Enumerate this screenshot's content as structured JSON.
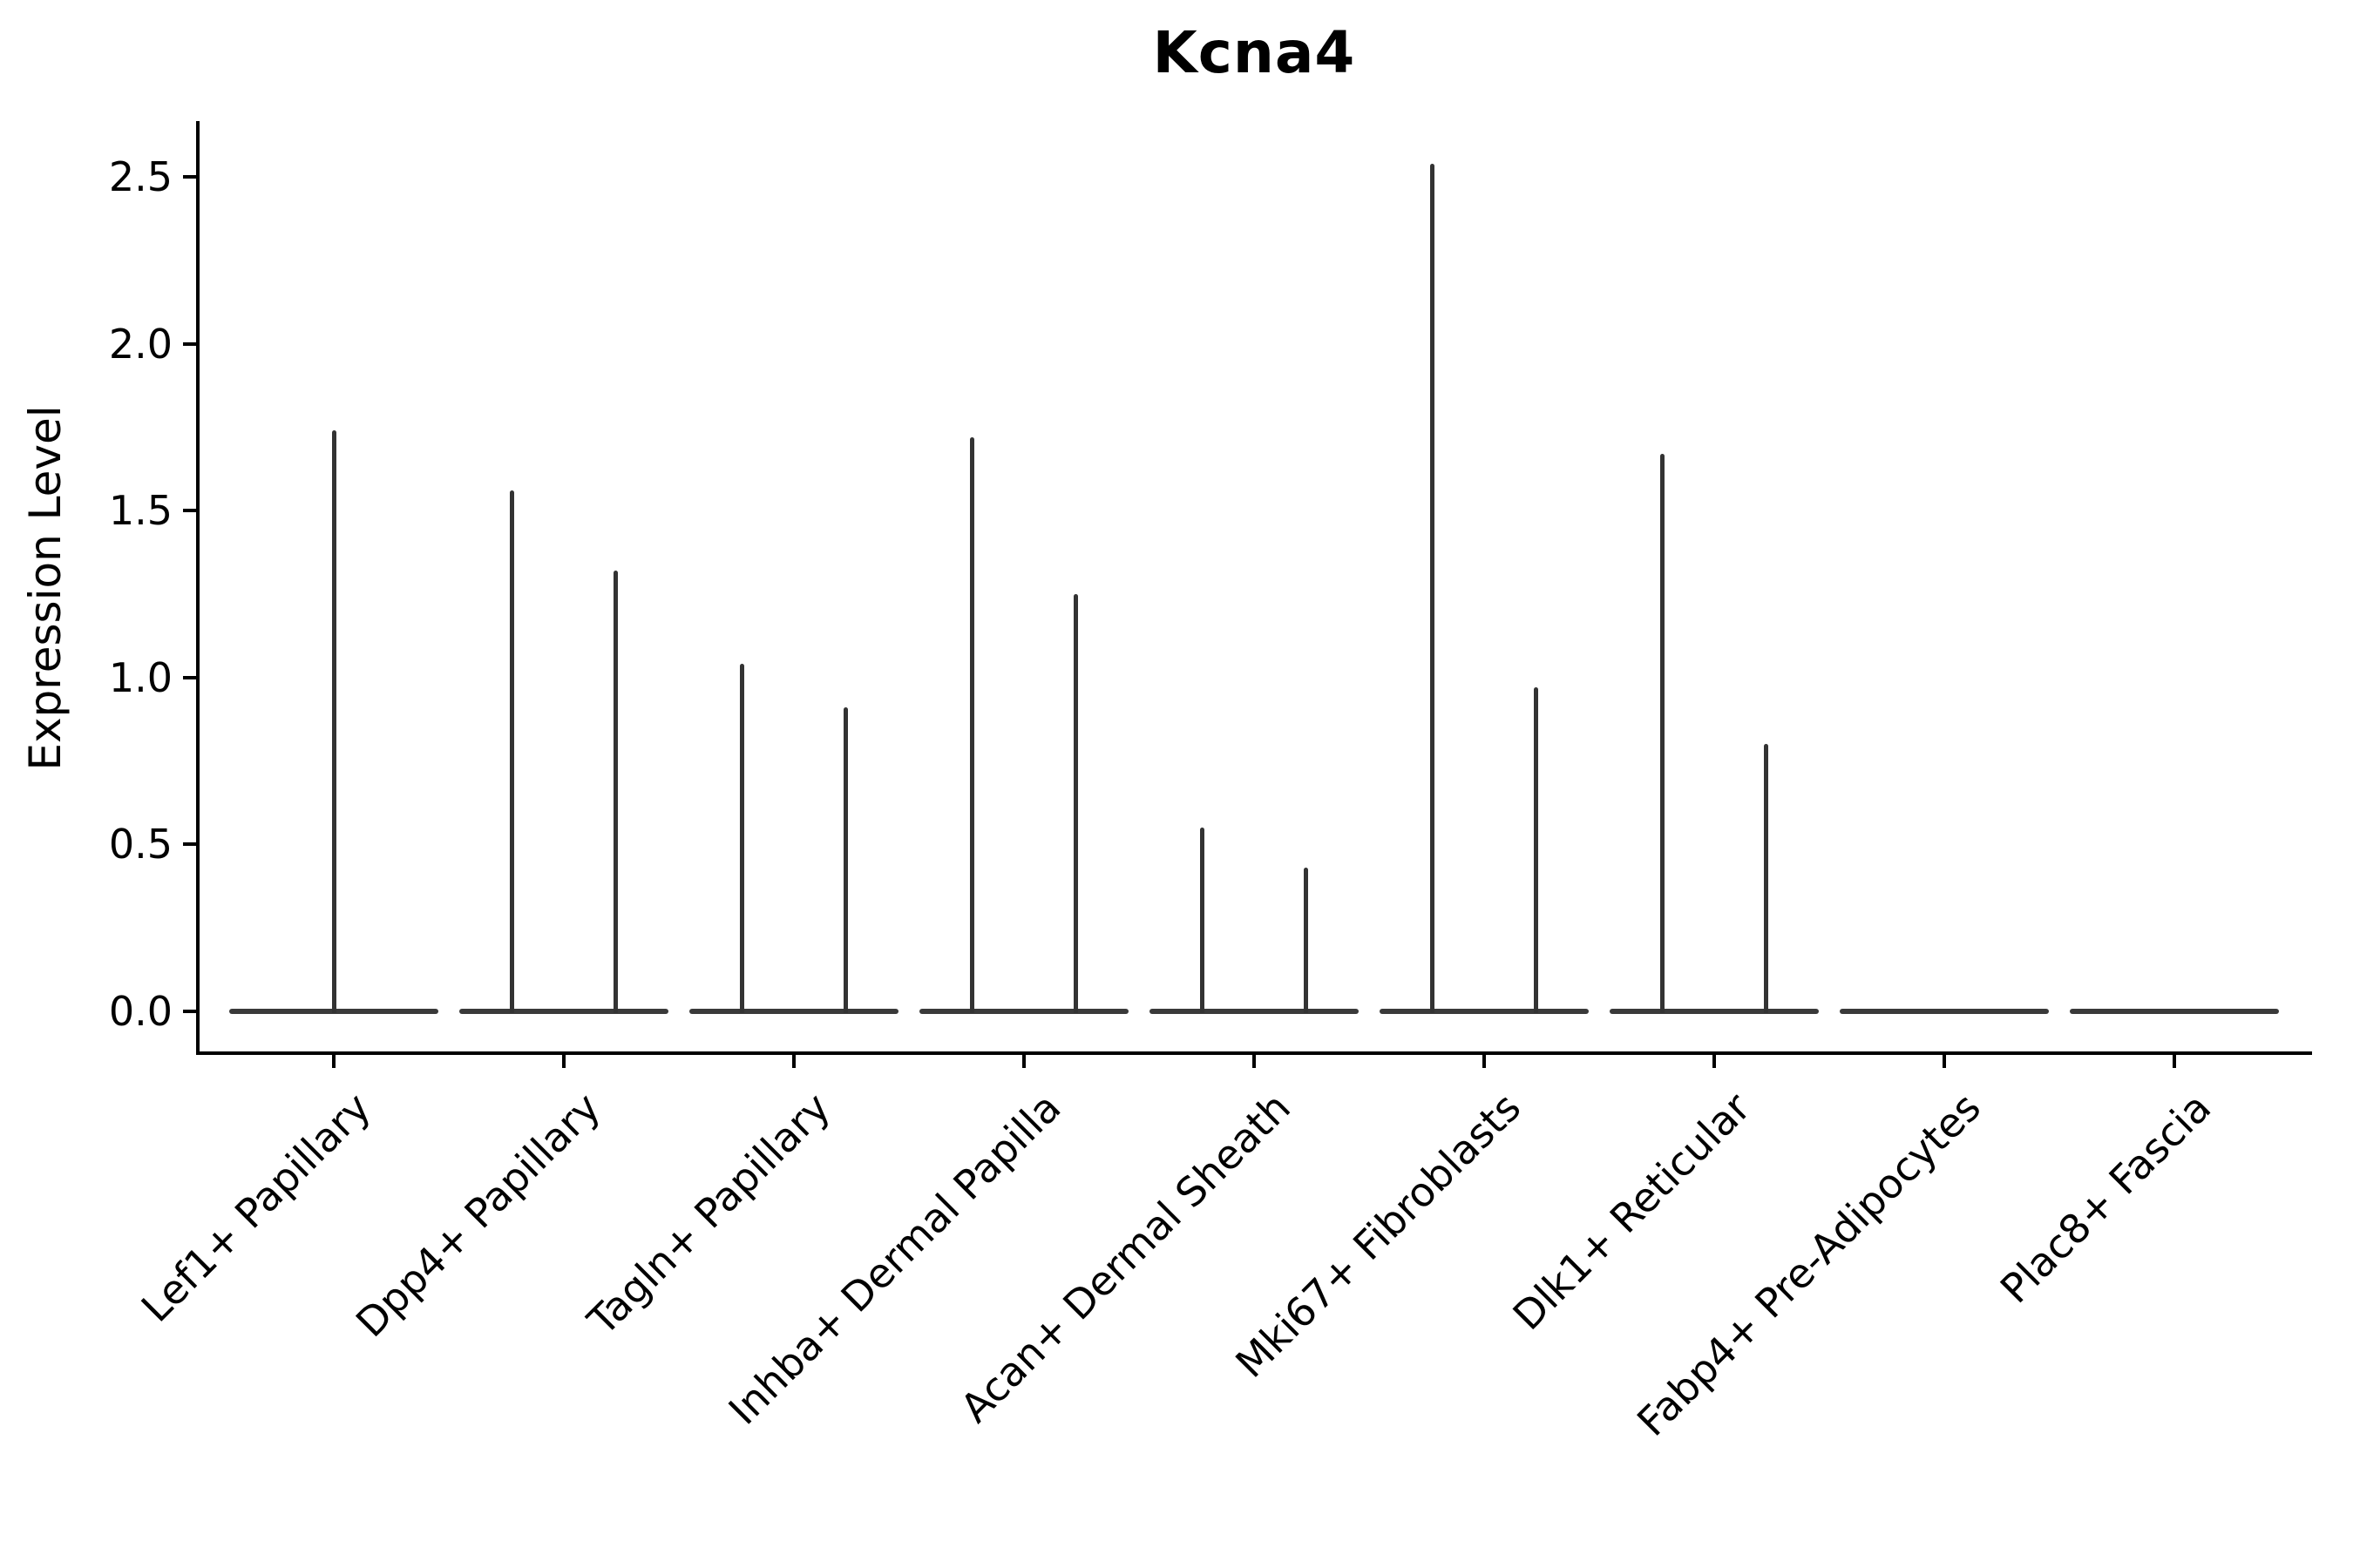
{
  "title": "Kcna4",
  "axes": {
    "ylabel": "Expression Level",
    "ytick_labels": [
      "0.0",
      "0.5",
      "1.0",
      "1.5",
      "2.0",
      "2.5"
    ],
    "ytick_values": [
      0,
      0.5,
      1.0,
      1.5,
      2.0,
      2.5
    ]
  },
  "colors": {
    "background": "#ffffff",
    "axis": "#000000",
    "violin": "#3a3a3a",
    "spike": "#333333"
  },
  "chart_data": {
    "type": "violin",
    "title": "Kcna4",
    "xlabel": "",
    "ylabel": "Expression Level",
    "ylim": [
      -0.125,
      2.66
    ],
    "yticks": [
      0,
      0.5,
      1.0,
      1.5,
      2.0,
      2.5
    ],
    "grid": false,
    "legend": "none",
    "description": "Single-cell expression violin plot; violins are flat at 0 with thin spikes reaching the maximum expression value of each sub-violin.",
    "categories": [
      "Lef1+ Papillary",
      "Dpp4+ Papillary",
      "Tagln+ Papillary",
      "Inhba+ Dermal Papilla",
      "Acan+ Dermal Sheath",
      "Mki67+ Fibroblasts",
      "Dlk1+ Reticular",
      "Fabp4+ Pre-Adipocytes",
      "Plac8+ Fascia"
    ],
    "violins": [
      {
        "category": "Lef1+ Papillary",
        "spikes": [
          {
            "slot": "center",
            "max": 1.74
          }
        ]
      },
      {
        "category": "Dpp4+ Papillary",
        "spikes": [
          {
            "slot": "left",
            "max": 1.56
          },
          {
            "slot": "right",
            "max": 1.32
          }
        ]
      },
      {
        "category": "Tagln+ Papillary",
        "spikes": [
          {
            "slot": "left",
            "max": 1.04
          },
          {
            "slot": "right",
            "max": 0.91
          }
        ]
      },
      {
        "category": "Inhba+ Dermal Papilla",
        "spikes": [
          {
            "slot": "left",
            "max": 1.72
          },
          {
            "slot": "right",
            "max": 1.25
          }
        ]
      },
      {
        "category": "Acan+ Dermal Sheath",
        "spikes": [
          {
            "slot": "left",
            "max": 0.55
          },
          {
            "slot": "right",
            "max": 0.43
          }
        ]
      },
      {
        "category": "Mki67+ Fibroblasts",
        "spikes": [
          {
            "slot": "left",
            "max": 2.54
          },
          {
            "slot": "right",
            "max": 0.97
          }
        ]
      },
      {
        "category": "Dlk1+ Reticular",
        "spikes": [
          {
            "slot": "left",
            "max": 1.67
          },
          {
            "slot": "right",
            "max": 0.8
          }
        ]
      },
      {
        "category": "Fabp4+ Pre-Adipocytes",
        "spikes": []
      },
      {
        "category": "Plac8+ Fascia",
        "spikes": []
      }
    ],
    "baseline_value": 0.0
  }
}
